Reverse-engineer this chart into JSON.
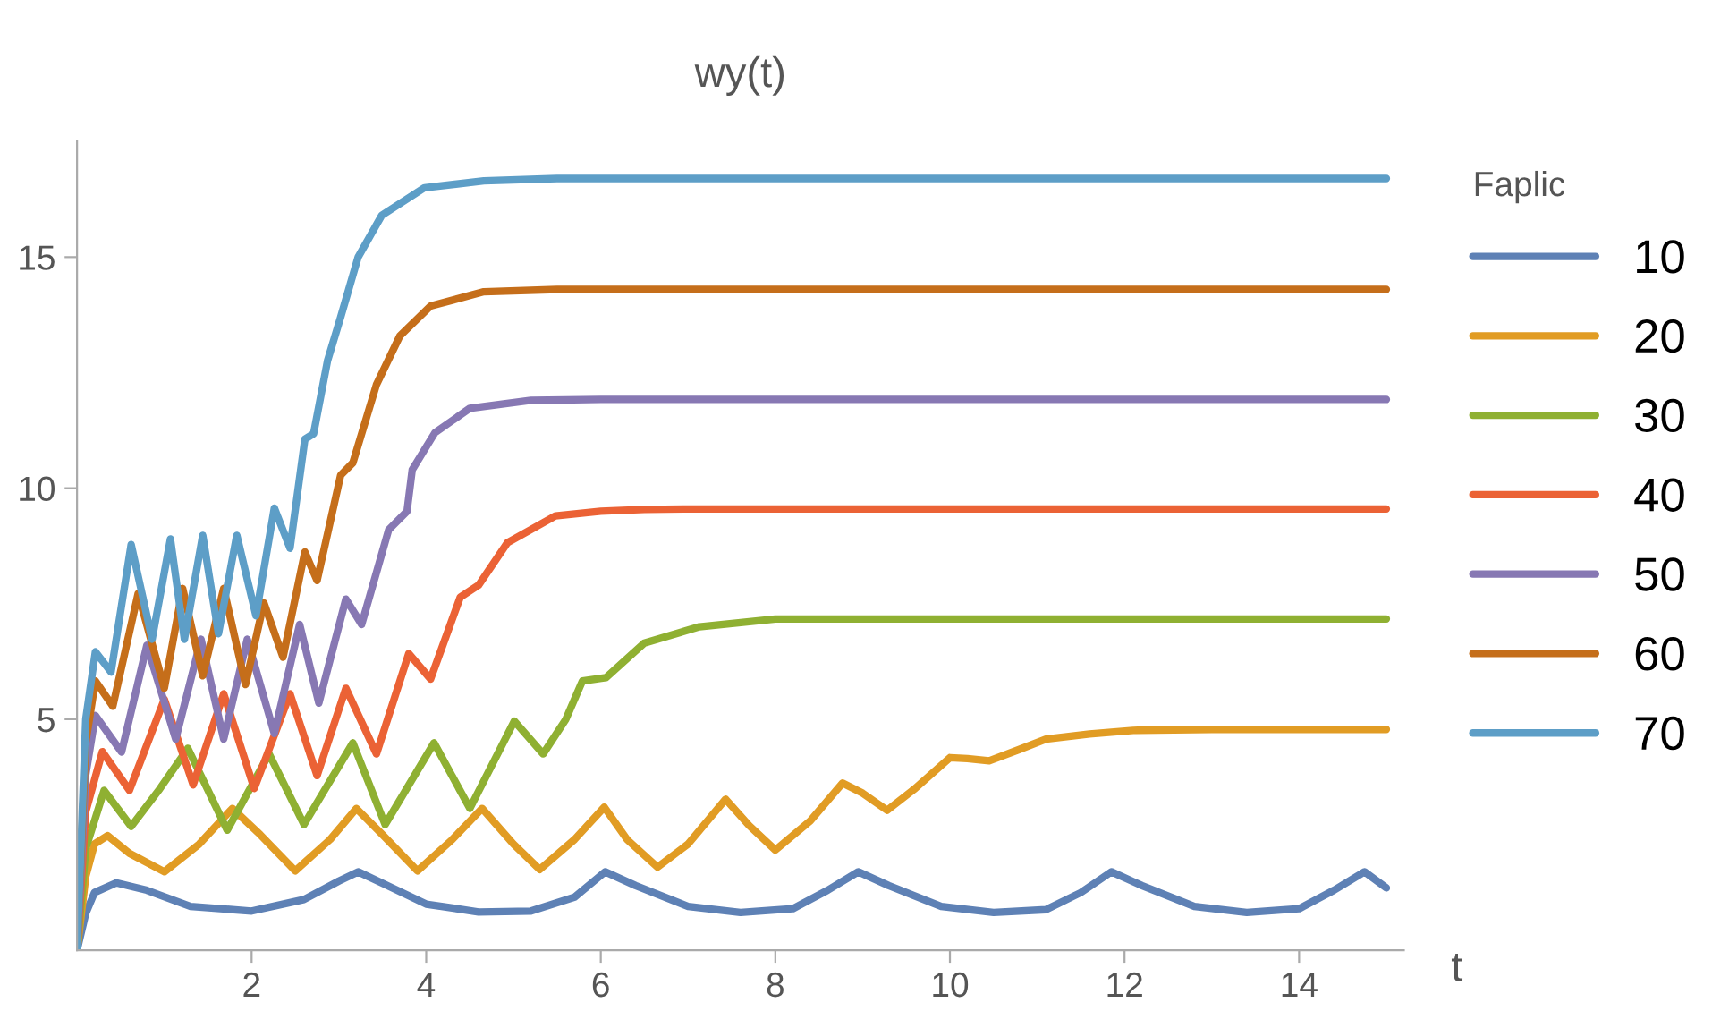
{
  "chart_data": {
    "type": "line",
    "title": "wy(t)",
    "xlabel": "t",
    "legend_title": "Faplic",
    "legend": "right",
    "grid": false,
    "xlim": [
      0,
      15.2
    ],
    "ylim": [
      0,
      17.5
    ],
    "xticks": [
      2,
      4,
      6,
      8,
      10,
      12,
      14
    ],
    "yticks": [
      5,
      10,
      15
    ],
    "series": [
      {
        "name": "10",
        "color": "#5e81b5",
        "x": [
          0,
          0.1,
          0.2,
          0.45,
          0.8,
          1.3,
          2.0,
          2.6,
          3.0,
          3.22,
          3.5,
          4.0,
          4.6,
          5.2,
          5.7,
          6.05,
          6.4,
          7.0,
          7.6,
          8.2,
          8.6,
          8.95,
          9.3,
          9.9,
          10.5,
          11.1,
          11.5,
          11.85,
          12.2,
          12.8,
          13.4,
          14.0,
          14.4,
          14.75,
          15.0
        ],
        "values": [
          0,
          0.8,
          1.25,
          1.46,
          1.3,
          0.95,
          0.85,
          1.1,
          1.5,
          1.7,
          1.45,
          1.0,
          0.83,
          0.85,
          1.15,
          1.7,
          1.4,
          0.95,
          0.82,
          0.9,
          1.3,
          1.7,
          1.4,
          0.95,
          0.82,
          0.88,
          1.25,
          1.7,
          1.4,
          0.95,
          0.82,
          0.9,
          1.3,
          1.7,
          1.35
        ]
      },
      {
        "name": "20",
        "color": "#e19c24",
        "x": [
          0,
          0.1,
          0.2,
          0.35,
          0.6,
          1.0,
          1.4,
          1.78,
          2.1,
          2.5,
          2.9,
          3.2,
          3.5,
          3.9,
          4.3,
          4.64,
          5.0,
          5.3,
          5.7,
          6.04,
          6.3,
          6.65,
          7.0,
          7.43,
          7.7,
          8.0,
          8.4,
          8.77,
          9.0,
          9.28,
          9.6,
          10.0,
          10.2,
          10.45,
          10.8,
          11.1,
          11.6,
          12.1,
          13.0,
          14.0,
          15.0
        ],
        "values": [
          0,
          1.6,
          2.3,
          2.48,
          2.1,
          1.7,
          2.3,
          3.07,
          2.5,
          1.72,
          2.4,
          3.07,
          2.5,
          1.72,
          2.4,
          3.07,
          2.3,
          1.75,
          2.4,
          3.1,
          2.4,
          1.8,
          2.3,
          3.27,
          2.7,
          2.17,
          2.8,
          3.62,
          3.4,
          3.03,
          3.5,
          4.17,
          4.15,
          4.1,
          4.35,
          4.57,
          4.68,
          4.76,
          4.78,
          4.78,
          4.78
        ]
      },
      {
        "name": "30",
        "color": "#8fb032",
        "x": [
          0,
          0.1,
          0.31,
          0.62,
          0.95,
          1.27,
          1.72,
          2.2,
          2.6,
          3.16,
          3.53,
          4.09,
          4.5,
          5.01,
          5.34,
          5.6,
          5.79,
          6.06,
          6.5,
          7.13,
          8.0,
          9.0,
          11.0,
          13.0,
          15.0
        ],
        "values": [
          0,
          2.2,
          3.46,
          2.68,
          3.5,
          4.37,
          2.6,
          4.25,
          2.72,
          4.49,
          2.72,
          4.49,
          3.07,
          4.96,
          4.25,
          5.0,
          5.83,
          5.9,
          6.65,
          7.0,
          7.17,
          7.17,
          7.17,
          7.17,
          7.17
        ]
      },
      {
        "name": "40",
        "color": "#eb6235",
        "x": [
          0,
          0.1,
          0.29,
          0.6,
          1.0,
          1.33,
          1.68,
          2.03,
          2.44,
          2.75,
          3.08,
          3.43,
          3.8,
          4.05,
          4.39,
          4.6,
          4.93,
          5.48,
          6.0,
          6.5,
          7.0,
          8.0,
          10.0,
          12.0,
          15.0
        ],
        "values": [
          0,
          3.0,
          4.3,
          3.46,
          5.43,
          3.58,
          5.55,
          3.5,
          5.55,
          3.78,
          5.67,
          4.25,
          6.42,
          5.87,
          7.64,
          7.9,
          8.82,
          9.4,
          9.5,
          9.54,
          9.55,
          9.55,
          9.55,
          9.55,
          9.55
        ]
      },
      {
        "name": "50",
        "color": "#8778b3",
        "x": [
          0,
          0.1,
          0.21,
          0.51,
          0.8,
          1.13,
          1.42,
          1.68,
          1.95,
          2.26,
          2.55,
          2.77,
          3.08,
          3.26,
          3.57,
          3.78,
          3.84,
          4.1,
          4.5,
          5.2,
          6.0,
          8.0,
          10.0,
          12.0,
          15.0
        ],
        "values": [
          0,
          3.8,
          5.08,
          4.29,
          6.6,
          4.57,
          6.73,
          4.57,
          6.73,
          4.69,
          7.05,
          5.35,
          7.6,
          7.05,
          9.1,
          9.5,
          10.4,
          11.2,
          11.73,
          11.9,
          11.92,
          11.92,
          11.92,
          11.92,
          11.92
        ]
      },
      {
        "name": "60",
        "color": "#c56e1a",
        "x": [
          0,
          0.1,
          0.21,
          0.41,
          0.7,
          1.0,
          1.21,
          1.44,
          1.68,
          1.93,
          2.14,
          2.36,
          2.61,
          2.75,
          3.02,
          3.16,
          3.43,
          3.7,
          4.05,
          4.66,
          5.5,
          7.0,
          10.0,
          12.0,
          15.0
        ],
        "values": [
          0,
          4.5,
          5.83,
          5.28,
          7.72,
          5.67,
          7.83,
          5.94,
          7.83,
          5.75,
          7.52,
          6.34,
          8.62,
          8.0,
          10.28,
          10.55,
          12.24,
          13.3,
          13.94,
          14.25,
          14.3,
          14.3,
          14.3,
          14.3,
          14.3
        ]
      },
      {
        "name": "70",
        "color": "#5d9ec7",
        "x": [
          0,
          0.1,
          0.21,
          0.39,
          0.62,
          0.86,
          1.07,
          1.23,
          1.44,
          1.62,
          1.83,
          2.05,
          2.26,
          2.44,
          2.61,
          2.71,
          2.87,
          3.02,
          3.22,
          3.49,
          3.98,
          4.66,
          5.5,
          7.0,
          10.0,
          12.0,
          15.0
        ],
        "values": [
          0,
          5.0,
          6.46,
          6.02,
          8.78,
          6.73,
          8.9,
          6.73,
          8.98,
          6.85,
          8.98,
          7.24,
          9.57,
          8.7,
          11.06,
          11.18,
          12.76,
          13.7,
          15.0,
          15.9,
          16.5,
          16.65,
          16.7,
          16.7,
          16.7,
          16.7,
          16.7
        ]
      }
    ]
  }
}
